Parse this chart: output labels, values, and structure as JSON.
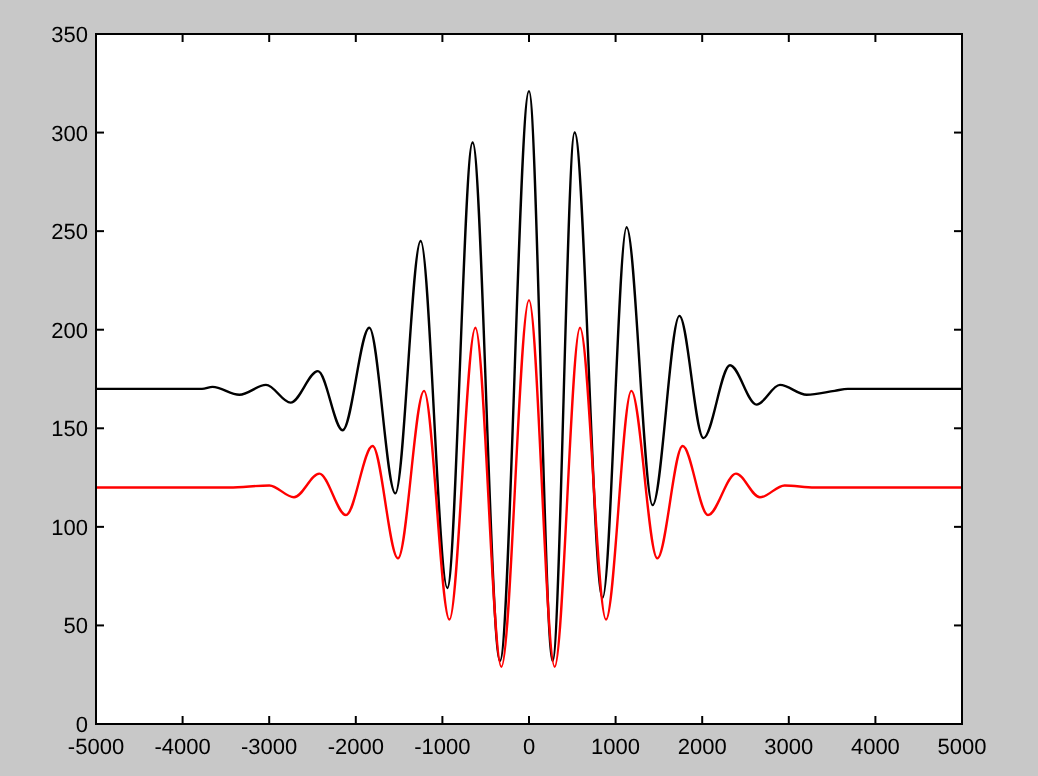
{
  "chart_data": {
    "type": "line",
    "xlim": [
      -5000,
      5000
    ],
    "ylim": [
      0,
      350
    ],
    "xticks": [
      -5000,
      -4000,
      -3000,
      -2000,
      -1000,
      0,
      1000,
      2000,
      3000,
      4000,
      5000
    ],
    "yticks": [
      0,
      50,
      100,
      150,
      200,
      250,
      300,
      350
    ],
    "grid": false,
    "marker": "none",
    "line_style": "solid",
    "series": [
      {
        "color": "#000000",
        "x": [
          -5000,
          -3776,
          -3654,
          -3344,
          -3037,
          -2753,
          -2437,
          -2152,
          -1844,
          -1543,
          -1251,
          -943,
          -651,
          -335,
          0,
          273,
          527,
          850,
          1127,
          1427,
          1737,
          2014,
          2321,
          2628,
          2898,
          3206,
          3529,
          3682,
          5000
        ],
        "values": [
          170,
          170,
          171,
          167,
          172,
          163,
          179,
          149,
          201,
          117,
          245,
          69,
          295,
          32,
          321,
          32,
          300,
          64,
          252,
          111,
          207,
          145,
          182,
          162,
          172,
          167,
          169,
          170,
          170
        ]
      },
      {
        "color": "#ff0000",
        "x": [
          -5000,
          -3460,
          -2998,
          -2714,
          -2421,
          -2113,
          -1806,
          -1513,
          -1212,
          -919,
          -619,
          -319,
          0,
          296,
          589,
          889,
          1182,
          1482,
          1774,
          2067,
          2390,
          2667,
          2952,
          3298,
          5000
        ],
        "values": [
          120,
          120,
          121,
          115,
          127,
          106,
          141,
          84,
          169,
          53,
          201,
          29,
          215,
          29,
          201,
          53,
          169,
          84,
          141,
          106,
          127,
          115,
          121,
          120,
          120
        ]
      }
    ]
  }
}
